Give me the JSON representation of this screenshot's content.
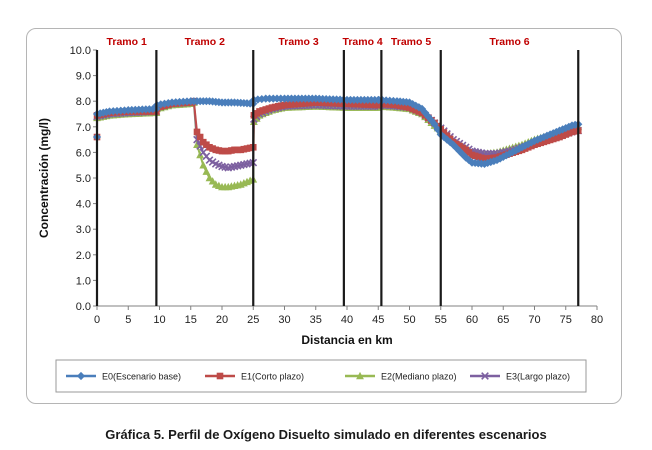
{
  "caption": "Gráfica 5. Perfil de Oxígeno Disuelto simulado en diferentes escenarios",
  "chart_data": {
    "type": "line",
    "xlabel": "Distancia en km",
    "ylabel": "Concentración (mg/l)",
    "xlim": [
      0,
      80
    ],
    "ylim": [
      0,
      10
    ],
    "xticks": [
      "0",
      "5",
      "10",
      "15",
      "20",
      "25",
      "30",
      "35",
      "40",
      "45",
      "50",
      "55",
      "60",
      "65",
      "70",
      "75",
      "80"
    ],
    "yticks": [
      "0.0",
      "1.0",
      "2.0",
      "3.0",
      "4.0",
      "5.0",
      "6.0",
      "7.0",
      "8.0",
      "9.0",
      "10.0"
    ],
    "grid": false,
    "legend_position": "bottom",
    "segments": [
      {
        "label": "Tramo 1",
        "start": 0,
        "end": 9.5
      },
      {
        "label": "Tramo 2",
        "start": 9.5,
        "end": 25
      },
      {
        "label": "Tramo 3",
        "start": 25,
        "end": 39.5
      },
      {
        "label": "Tramo 4",
        "start": 39.5,
        "end": 45.5
      },
      {
        "label": "Tramo 5",
        "start": 45.5,
        "end": 55
      },
      {
        "label": "Tramo 6",
        "start": 55,
        "end": 77
      }
    ],
    "boundaries": [
      0,
      9.5,
      25,
      39.5,
      45.5,
      55,
      77
    ],
    "segment_label_color": "#c00000",
    "series": [
      {
        "name": "E0(Escenario base)",
        "color": "#4a7ebb",
        "marker": "diamond",
        "x": [
          0,
          0.01,
          2,
          5,
          9.5,
          9.6,
          12,
          15,
          16,
          18,
          20,
          22,
          24,
          25,
          25.1,
          27,
          30,
          35,
          40,
          45,
          45.1,
          48,
          50,
          52,
          54,
          55,
          57,
          59,
          60,
          62,
          64,
          66,
          68,
          70,
          72,
          74,
          76,
          77
        ],
        "y": [
          6.6,
          7.5,
          7.6,
          7.65,
          7.7,
          7.85,
          7.95,
          8.0,
          8.0,
          8.0,
          7.95,
          7.95,
          7.92,
          7.9,
          8.05,
          8.1,
          8.1,
          8.1,
          8.05,
          8.05,
          8.05,
          8.0,
          7.95,
          7.7,
          7.1,
          6.7,
          6.3,
          5.8,
          5.6,
          5.55,
          5.7,
          5.95,
          6.2,
          6.45,
          6.65,
          6.85,
          7.05,
          7.1
        ]
      },
      {
        "name": "E1(Corto plazo)",
        "color": "#be4b48",
        "marker": "square",
        "x": [
          0,
          0.01,
          2,
          5,
          9.5,
          9.6,
          12,
          15,
          15.5,
          16,
          17,
          18,
          19,
          20,
          21,
          22,
          23,
          24,
          25,
          25.1,
          26,
          28,
          30,
          35,
          40,
          45,
          45.1,
          48,
          50,
          52,
          54,
          55,
          57,
          59,
          60,
          62,
          64,
          66,
          68,
          70,
          72,
          74,
          76,
          77
        ],
        "y": [
          6.6,
          7.45,
          7.55,
          7.6,
          7.6,
          7.75,
          7.9,
          7.95,
          8.0,
          6.8,
          6.4,
          6.2,
          6.1,
          6.05,
          6.05,
          6.1,
          6.1,
          6.15,
          6.2,
          7.45,
          7.6,
          7.75,
          7.85,
          7.95,
          7.9,
          7.85,
          7.9,
          7.85,
          7.75,
          7.55,
          7.15,
          6.9,
          6.4,
          6.1,
          5.9,
          5.75,
          5.8,
          5.95,
          6.1,
          6.3,
          6.45,
          6.6,
          6.8,
          6.85
        ]
      },
      {
        "name": "E2(Mediano plazo)",
        "color": "#98b954",
        "marker": "triangle",
        "x": [
          0,
          2,
          5,
          9.5,
          9.6,
          12,
          15,
          15.5,
          16,
          17,
          18,
          19,
          20,
          21,
          22,
          23,
          24,
          25,
          25.1,
          26,
          28,
          30,
          35,
          40,
          45,
          45.1,
          48,
          50,
          52,
          54,
          55,
          57,
          59,
          60,
          62,
          64,
          66,
          68,
          70,
          72,
          74,
          76,
          77
        ],
        "y": [
          7.35,
          7.45,
          7.5,
          7.55,
          7.7,
          7.85,
          7.9,
          7.95,
          6.3,
          5.5,
          5.0,
          4.75,
          4.65,
          4.65,
          4.7,
          4.75,
          4.85,
          4.95,
          7.2,
          7.45,
          7.65,
          7.75,
          7.8,
          7.75,
          7.75,
          7.8,
          7.75,
          7.7,
          7.5,
          7.05,
          6.85,
          6.4,
          6.15,
          6.0,
          5.95,
          6.0,
          6.15,
          6.3,
          6.5,
          6.65,
          6.8,
          6.95,
          7.0
        ]
      },
      {
        "name": "E3(Largo plazo)",
        "color": "#7d60a0",
        "marker": "x",
        "x": [
          0,
          2,
          5,
          9.5,
          9.6,
          12,
          15,
          15.5,
          16,
          17,
          18,
          19,
          20,
          21,
          22,
          23,
          24,
          25,
          25.1,
          26,
          28,
          30,
          35,
          40,
          45,
          45.1,
          48,
          50,
          52,
          54,
          55,
          57,
          59,
          60,
          62,
          64,
          66,
          68,
          70,
          72,
          74,
          76,
          77
        ],
        "y": [
          7.4,
          7.5,
          7.55,
          7.6,
          7.75,
          7.9,
          7.95,
          8.0,
          6.5,
          6.0,
          5.7,
          5.55,
          5.45,
          5.4,
          5.45,
          5.5,
          5.55,
          5.6,
          7.3,
          7.5,
          7.7,
          7.8,
          7.85,
          7.8,
          7.8,
          7.85,
          7.8,
          7.75,
          7.55,
          7.15,
          6.95,
          6.5,
          6.2,
          6.05,
          5.95,
          5.95,
          6.05,
          6.2,
          6.35,
          6.5,
          6.65,
          6.8,
          6.85
        ]
      }
    ]
  }
}
